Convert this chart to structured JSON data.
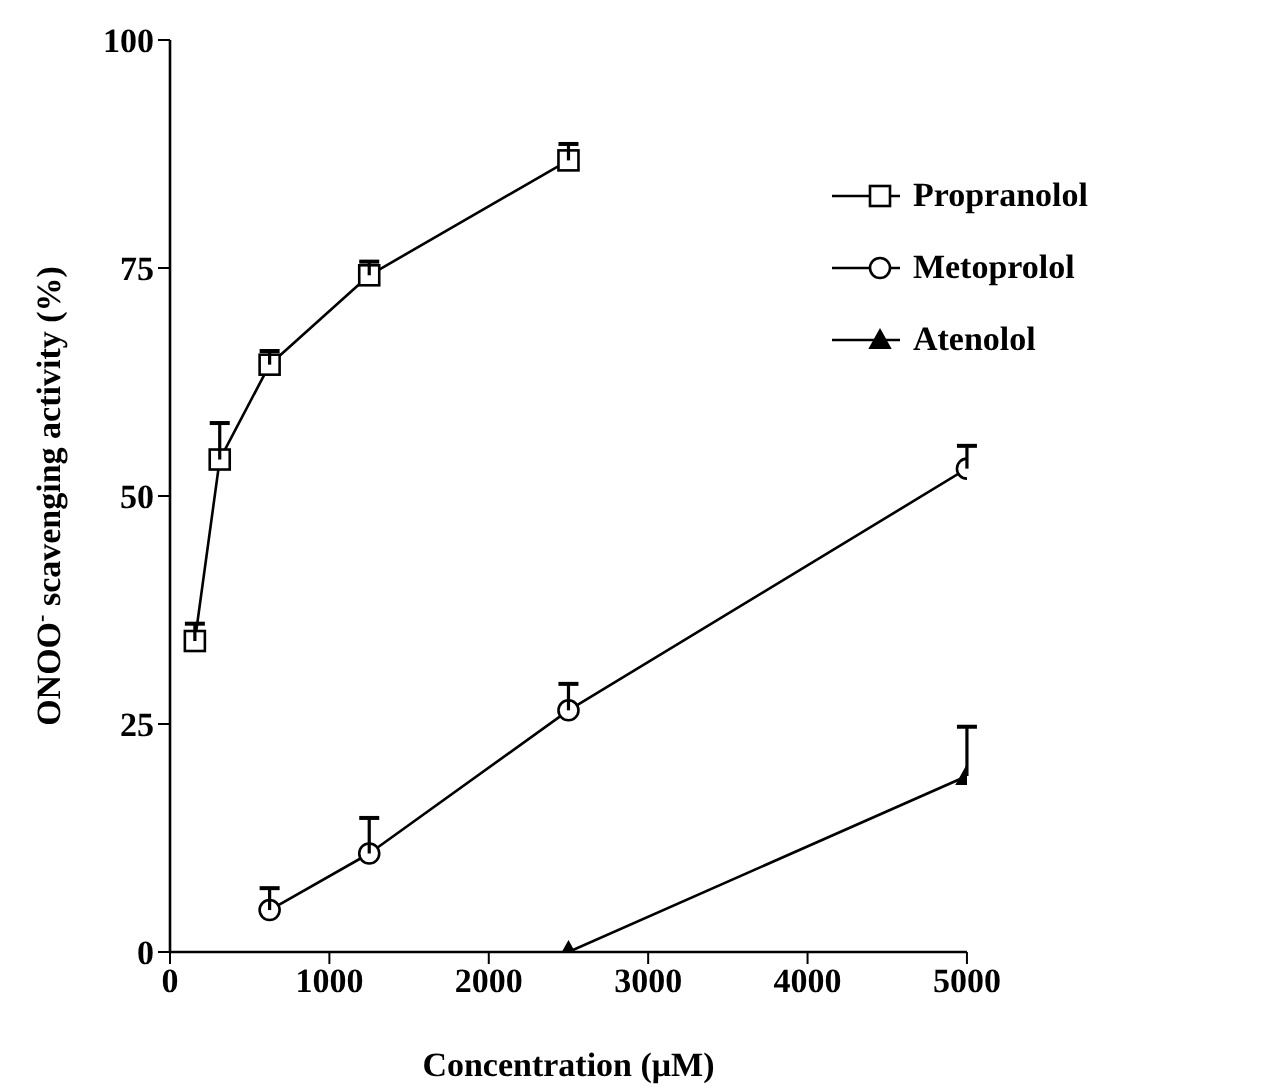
{
  "chart_data": {
    "type": "line",
    "xlabel": "Concentration (μM)",
    "ylabel": "ONOO$^{-}$ scavenging activity (%)",
    "xlim": [
      0,
      5000
    ],
    "xticks": [
      0,
      1000,
      2000,
      3000,
      4000,
      5000
    ],
    "ylim": [
      0,
      100
    ],
    "yticks": [
      0,
      25,
      50,
      75,
      100
    ],
    "legend": "top right",
    "line_style": "solid",
    "series": [
      {
        "name": "Propranolol",
        "color": "#000000",
        "marker": "square",
        "x": [
          156,
          312,
          625,
          1250,
          2500
        ],
        "values": [
          34.1,
          54.0,
          64.4,
          74.2,
          86.8
        ],
        "errors": [
          [
            34.1,
            36.0
          ],
          [
            54.0,
            58.0
          ],
          [
            64.4,
            65.9
          ],
          [
            74.2,
            75.7
          ],
          [
            86.8,
            88.6
          ]
        ]
      },
      {
        "name": "Metoprolol",
        "color": "#000000",
        "marker": "circle",
        "x": [
          625,
          1250,
          2500,
          5000
        ],
        "values": [
          4.6,
          10.8,
          26.5,
          53.0
        ],
        "errors": [
          [
            4.6,
            7.0
          ],
          [
            10.8,
            14.7
          ],
          [
            26.5,
            29.4
          ],
          [
            53.0,
            55.5
          ]
        ]
      },
      {
        "name": "Atenolol",
        "color": "#000000",
        "marker": "triangle",
        "x": [
          2500,
          5000
        ],
        "values": [
          0,
          19.3
        ],
        "errors": [
          null,
          [
            19.3,
            24.7
          ]
        ]
      }
    ]
  }
}
